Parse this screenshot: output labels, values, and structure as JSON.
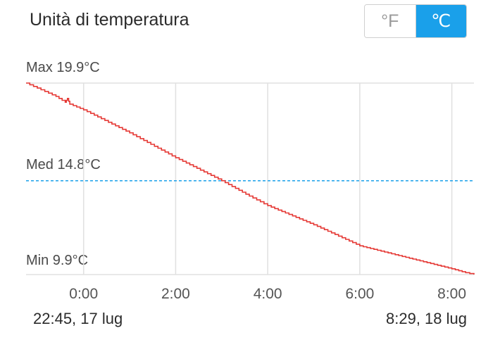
{
  "header": {
    "title": "Unità di temperatura"
  },
  "unit_toggle": {
    "fahrenheit_label": "°F",
    "celsius_label": "℃",
    "selected": "celsius"
  },
  "colors": {
    "accent": "#1aa0ea",
    "line": "#e53935",
    "average": "#1aa0ea",
    "grid": "#e0e0e0"
  },
  "footer": {
    "start_date": "22:45,  17 lug",
    "end_date": "8:29,  18 lug"
  },
  "chart_data": {
    "type": "line",
    "max_label": "Max 19.9°C",
    "avg_label": "Med 14.8°C",
    "min_label": "Min 9.9°C",
    "x_tick_labels": [
      "0:00",
      "2:00",
      "4:00",
      "6:00",
      "8:00"
    ],
    "x_ticks_hours": [
      0,
      2,
      4,
      6,
      8
    ],
    "x_range_hours": [
      -1.25,
      8.48
    ],
    "ylim": [
      9.9,
      19.9
    ],
    "average": 14.8,
    "series": [
      {
        "x": [
          -1.25,
          -0.6,
          -0.4,
          -0.35,
          -0.3,
          0,
          1,
          2,
          3,
          3.6,
          4,
          5,
          6,
          7,
          8,
          8.3,
          8.48
        ],
        "values": [
          19.9,
          19.2,
          18.9,
          19.1,
          18.8,
          18.5,
          17.3,
          16.0,
          14.8,
          14.0,
          13.5,
          12.5,
          11.4,
          10.8,
          10.2,
          10.0,
          9.9
        ]
      }
    ]
  }
}
